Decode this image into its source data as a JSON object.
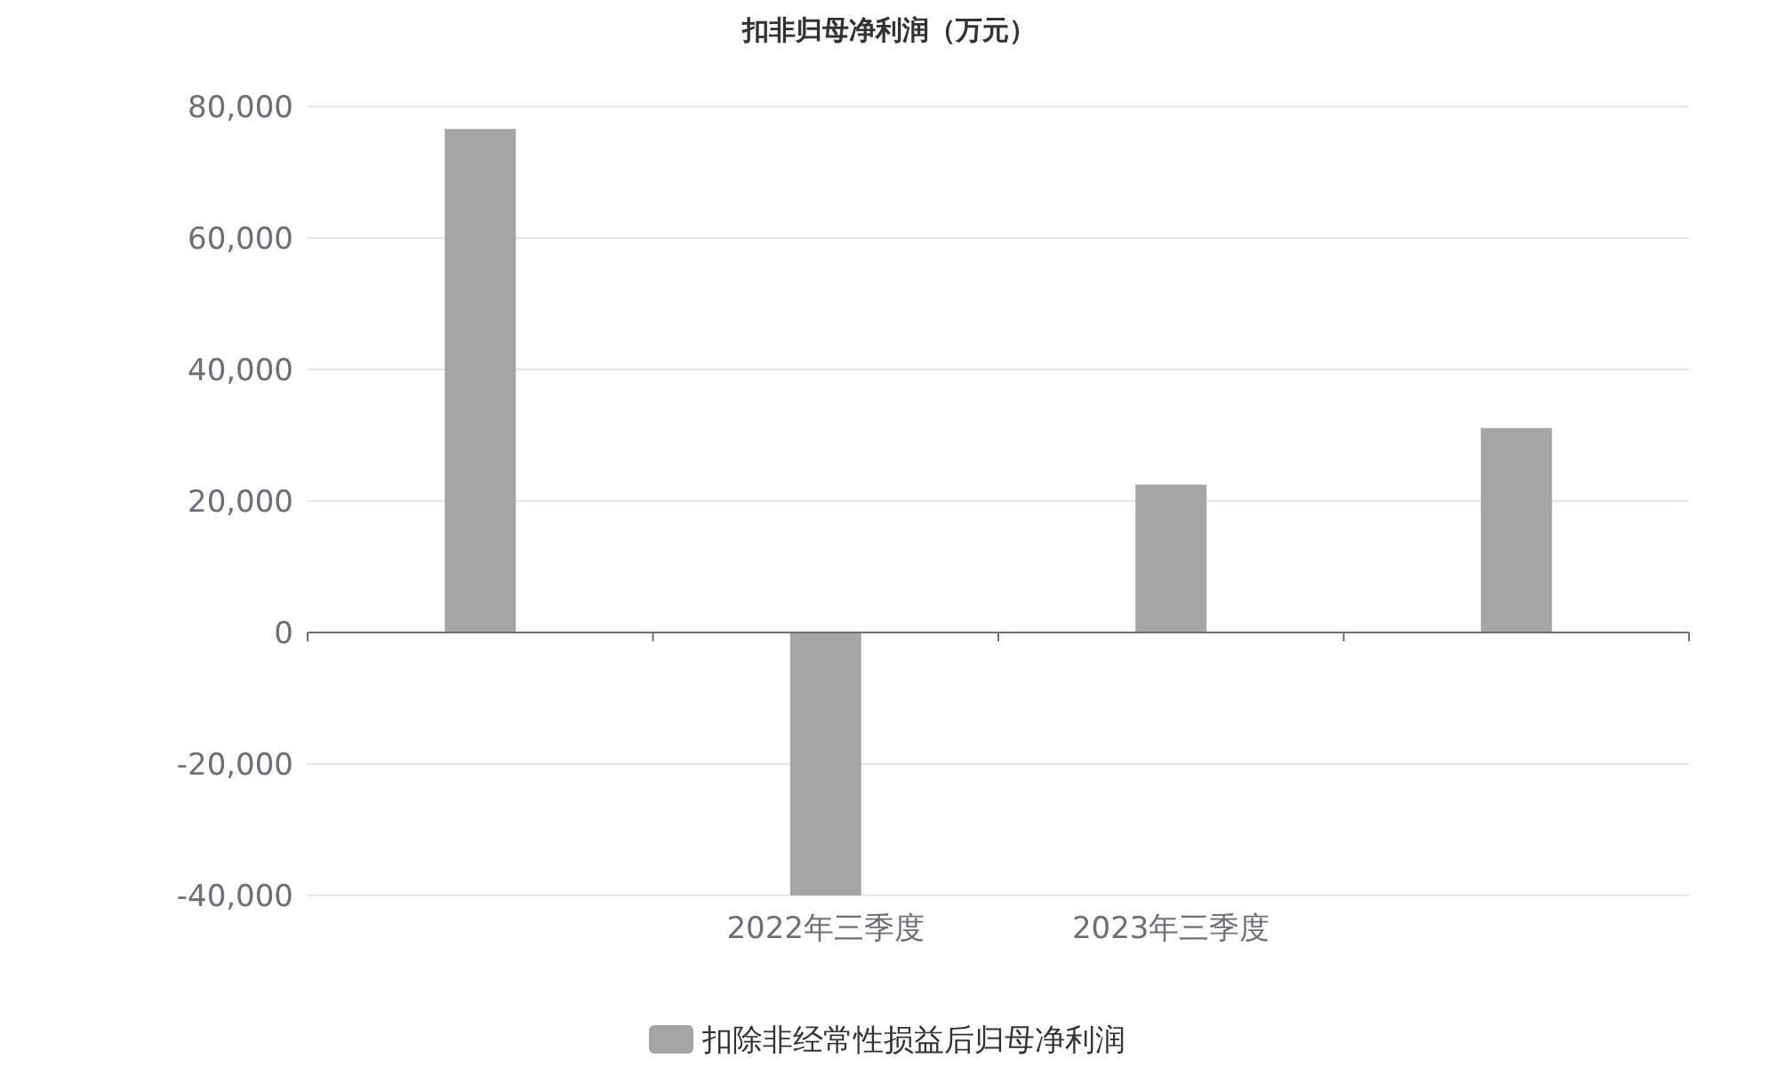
{
  "chart_data": {
    "type": "bar",
    "title": "扣非归母净利润（万元）",
    "categories": [
      null,
      "2022年三季度",
      "2023年三季度",
      null
    ],
    "series": [
      {
        "name": "扣除非经常性损益后归母净利润",
        "color": "#a5a5a5",
        "values": [
          76600,
          -40000,
          22500,
          31100
        ]
      }
    ],
    "ylim": [
      -40000,
      80000
    ],
    "yticks": [
      {
        "value": -40000,
        "label": "-40,000"
      },
      {
        "value": -20000,
        "label": "-20,000"
      },
      0,
      {
        "value": 20000,
        "label": "20,000"
      },
      {
        "value": 40000,
        "label": "40,000"
      },
      {
        "value": 60000,
        "label": "60,000"
      },
      {
        "value": 80000,
        "label": "80,000"
      }
    ],
    "grid": "y",
    "legend": "bottom"
  }
}
